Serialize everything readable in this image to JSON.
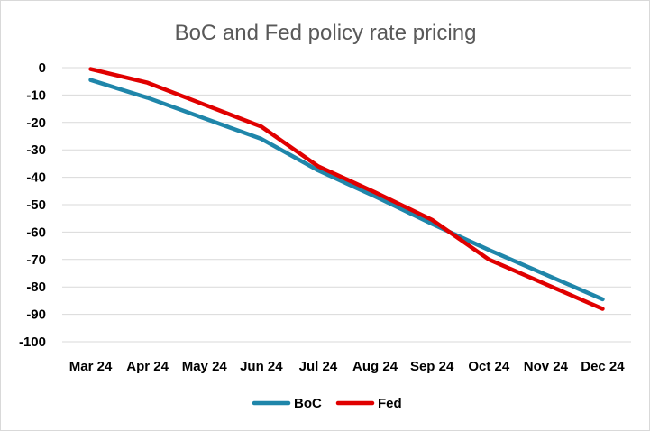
{
  "chart_data": {
    "type": "line",
    "title": "BoC and Fed policy rate pricing",
    "xlabel": "",
    "ylabel": "",
    "categories": [
      "Mar 24",
      "Apr 24",
      "May 24",
      "Jun 24",
      "Jul 24",
      "Aug 24",
      "Sep 24",
      "Oct 24",
      "Nov 24",
      "Dec 24"
    ],
    "ylim": [
      -100,
      0
    ],
    "yticks": [
      0,
      -10,
      -20,
      -30,
      -40,
      -50,
      -60,
      -70,
      -80,
      -90,
      -100
    ],
    "ytick_labels": [
      "0",
      "-10",
      "-20",
      "-30",
      "-40",
      "-50",
      "-60",
      "-70",
      "-80",
      "-90",
      "-100"
    ],
    "grid": true,
    "legend_position": "bottom",
    "series": [
      {
        "name": "BoC",
        "color": "#1f86aa",
        "values": [
          -4.5,
          -11,
          -18.5,
          -26,
          -37.5,
          -47,
          -57,
          -66.5,
          -75.5,
          -84.5
        ]
      },
      {
        "name": "Fed",
        "color": "#e00000",
        "values": [
          -0.5,
          -5.5,
          -13.5,
          -21.5,
          -36,
          -45.5,
          -55.5,
          -70,
          -79,
          -88
        ]
      }
    ]
  }
}
